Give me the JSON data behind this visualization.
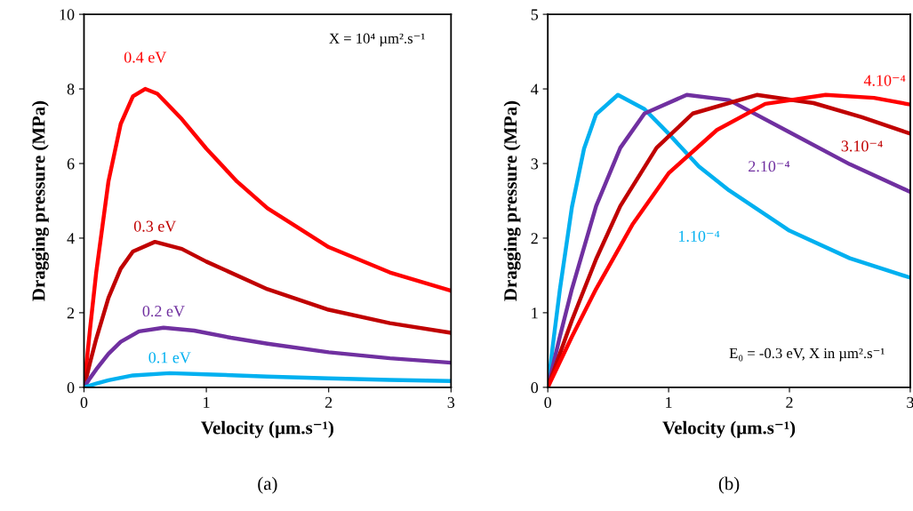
{
  "chart_data": [
    {
      "type": "line",
      "xlabel": "Velocity (µm.s⁻¹)",
      "ylabel": "Dragging pressure (MPa)",
      "xlim": [
        0,
        3
      ],
      "xticks": [
        0,
        1,
        2,
        3
      ],
      "ylim": [
        0,
        10
      ],
      "yticks": [
        0,
        2,
        4,
        6,
        8,
        10
      ],
      "grid": false,
      "legend": false,
      "marker": "none",
      "line_style": "solid",
      "series": [
        {
          "name": "0.4 eV",
          "color": "#ff0000",
          "x": [
            0,
            0.05,
            0.1,
            0.2,
            0.3,
            0.4,
            0.5,
            0.6,
            0.8,
            1.0,
            1.25,
            1.5,
            2,
            2.5,
            3
          ],
          "values": [
            0,
            1.58,
            3.08,
            5.52,
            7.06,
            7.8,
            8.0,
            7.87,
            7.19,
            6.4,
            5.52,
            4.8,
            3.76,
            3.08,
            2.59
          ]
        },
        {
          "name": "0.3 eV",
          "color": "#c00000",
          "x": [
            0,
            0.05,
            0.1,
            0.2,
            0.3,
            0.4,
            0.58,
            0.8,
            1.0,
            1.5,
            2,
            2.5,
            3
          ],
          "values": [
            0,
            0.67,
            1.3,
            2.4,
            3.18,
            3.64,
            3.9,
            3.71,
            3.37,
            2.63,
            2.08,
            1.72,
            1.46
          ]
        },
        {
          "name": "0.2 eV",
          "color": "#7030a0",
          "x": [
            0,
            0.05,
            0.1,
            0.2,
            0.3,
            0.45,
            0.65,
            0.9,
            1.2,
            1.5,
            2,
            2.5,
            3
          ],
          "values": [
            0,
            0.25,
            0.48,
            0.9,
            1.22,
            1.5,
            1.6,
            1.52,
            1.33,
            1.17,
            0.94,
            0.78,
            0.66
          ]
        },
        {
          "name": "0.1 eV",
          "color": "#00b0f0",
          "x": [
            0,
            0.1,
            0.2,
            0.4,
            0.7,
            1.0,
            1.5,
            2,
            2.5,
            3
          ],
          "values": [
            0,
            0.1,
            0.19,
            0.32,
            0.38,
            0.35,
            0.29,
            0.24,
            0.2,
            0.17
          ]
        }
      ],
      "annotations": [
        "X = 10⁴ µm².s⁻¹",
        "(a)"
      ]
    },
    {
      "type": "line",
      "xlabel": "Velocity (µm.s⁻¹)",
      "ylabel": "Dragging pressure (MPa)",
      "xlim": [
        0,
        3
      ],
      "xticks": [
        0,
        1,
        2,
        3
      ],
      "ylim": [
        0,
        5
      ],
      "yticks": [
        0,
        1,
        2,
        3,
        4,
        5
      ],
      "grid": false,
      "legend": false,
      "marker": "none",
      "line_style": "solid",
      "series": [
        {
          "name": "1.10⁻⁴",
          "color": "#00b0f0",
          "x": [
            0,
            0.05,
            0.1,
            0.2,
            0.3,
            0.4,
            0.58,
            0.8,
            1.0,
            1.25,
            1.5,
            2,
            2.5,
            3
          ],
          "values": [
            0,
            0.67,
            1.31,
            2.42,
            3.2,
            3.66,
            3.92,
            3.73,
            3.4,
            2.96,
            2.64,
            2.1,
            1.73,
            1.47
          ]
        },
        {
          "name": "2.10⁻⁴",
          "color": "#7030a0",
          "x": [
            0,
            0.1,
            0.2,
            0.4,
            0.6,
            0.8,
            1.15,
            1.5,
            2,
            2.5,
            3
          ],
          "values": [
            0,
            0.68,
            1.32,
            2.43,
            3.21,
            3.67,
            3.92,
            3.85,
            3.42,
            2.99,
            2.62
          ]
        },
        {
          "name": "3.10⁻⁴",
          "color": "#c00000",
          "x": [
            0,
            0.2,
            0.4,
            0.6,
            0.9,
            1.2,
            1.73,
            2.2,
            2.6,
            3
          ],
          "values": [
            0,
            0.9,
            1.72,
            2.43,
            3.21,
            3.67,
            3.92,
            3.81,
            3.62,
            3.4
          ]
        },
        {
          "name": "4.10⁻⁴",
          "color": "#ff0000",
          "x": [
            0,
            0.2,
            0.4,
            0.7,
            1.0,
            1.4,
            1.8,
            2.3,
            2.7,
            3
          ],
          "values": [
            0,
            0.68,
            1.32,
            2.18,
            2.87,
            3.45,
            3.8,
            3.92,
            3.88,
            3.79
          ]
        }
      ],
      "annotations": [
        "E₀ = -0.3 eV, X in µm².s⁻¹",
        "(b)"
      ]
    }
  ]
}
